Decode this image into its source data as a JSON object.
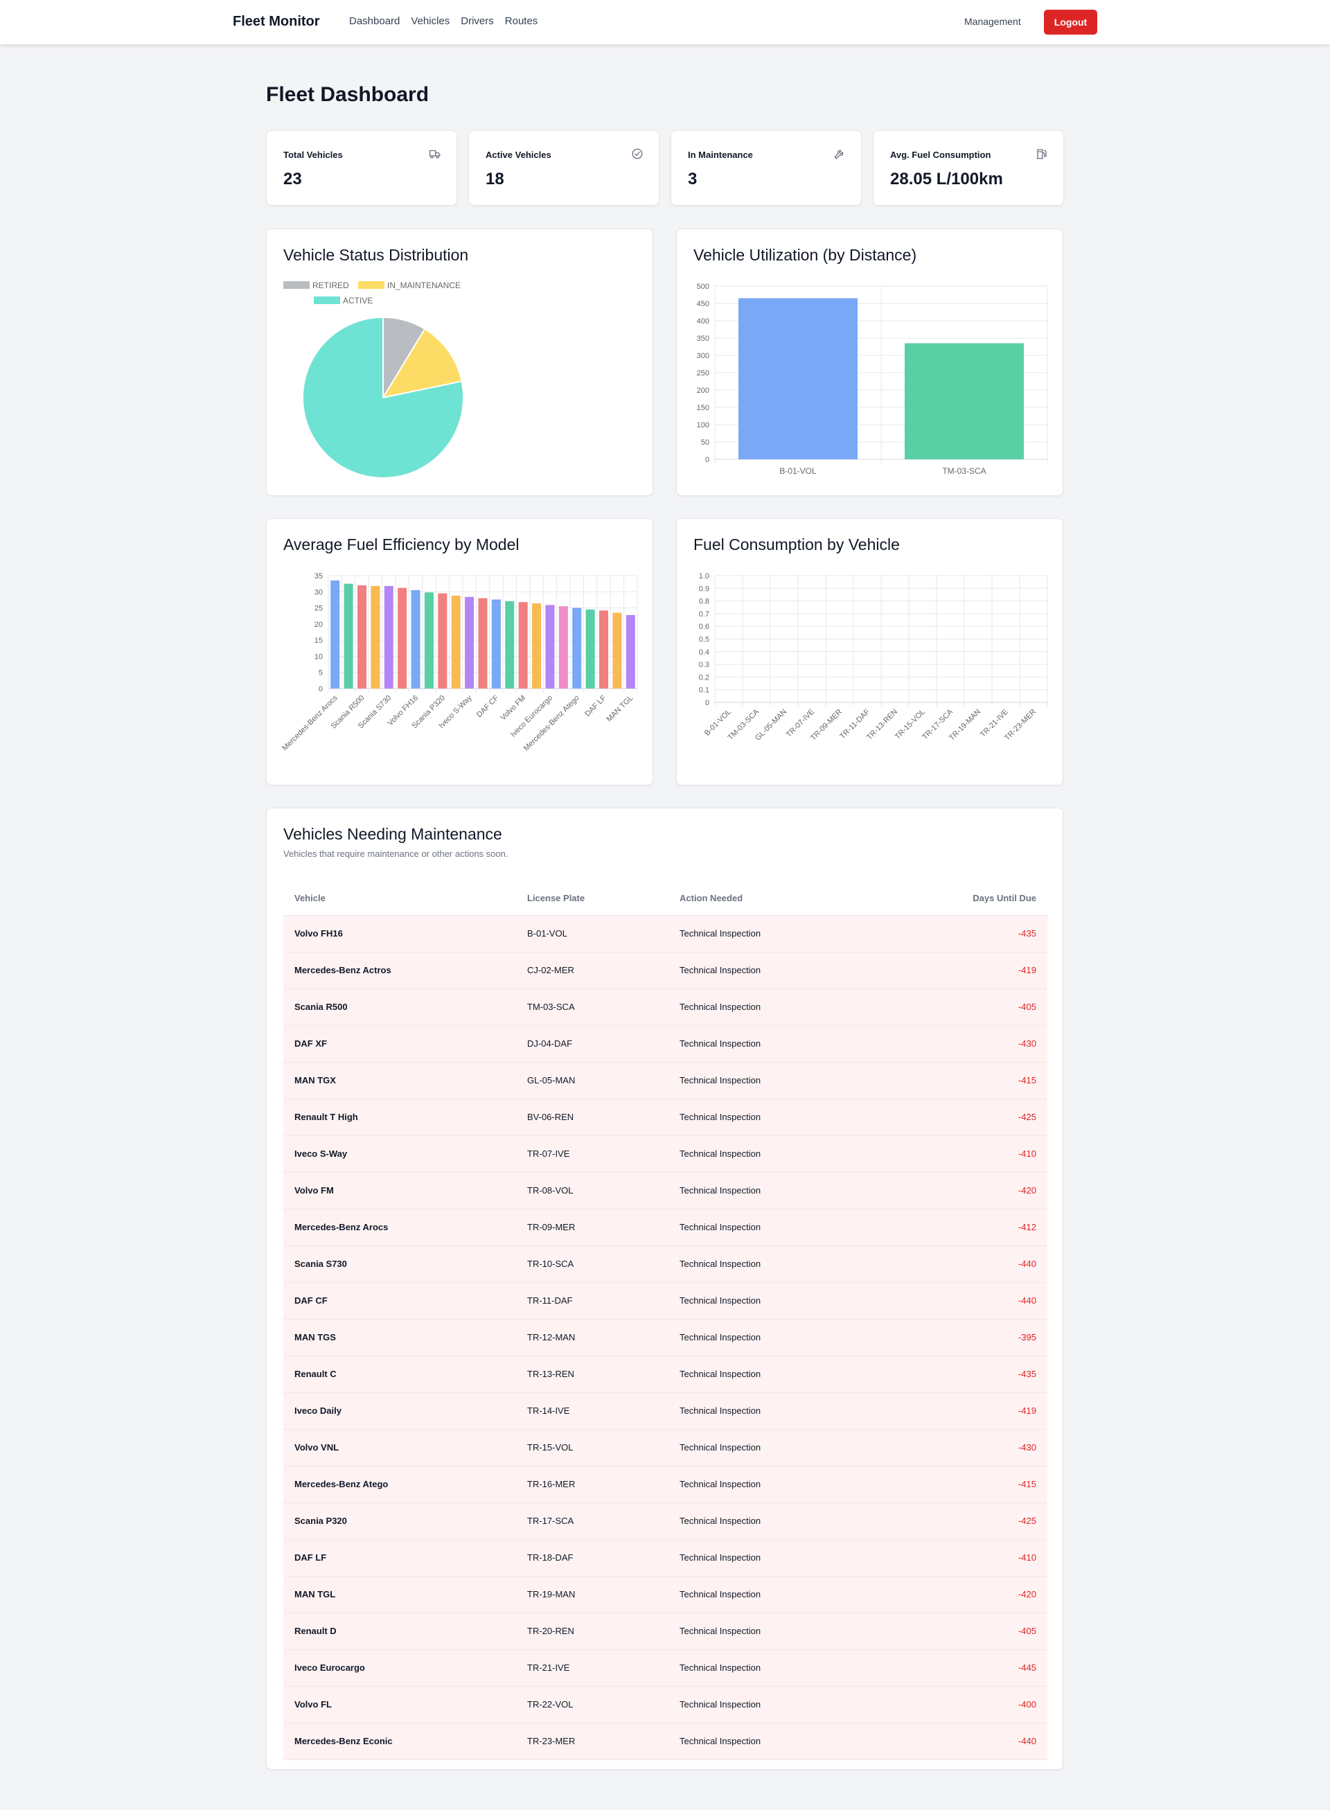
{
  "app": {
    "brand": "Fleet Monitor",
    "nav": [
      "Dashboard",
      "Vehicles",
      "Drivers",
      "Routes"
    ],
    "management": "Management",
    "logout": "Logout"
  },
  "page": {
    "title": "Fleet Dashboard"
  },
  "stats": [
    {
      "label": "Total Vehicles",
      "value": "23",
      "icon": "truck-icon"
    },
    {
      "label": "Active Vehicles",
      "value": "18",
      "icon": "check-circle-icon"
    },
    {
      "label": "In Maintenance",
      "value": "3",
      "icon": "wrench-icon"
    },
    {
      "label": "Avg. Fuel Consumption",
      "value": "28.05 L/100km",
      "icon": "fuel-icon"
    }
  ],
  "colors": {
    "gray": "#b9bcc1",
    "yellow": "#fcdc64",
    "teal": "#6ee3d3",
    "blue": "#78a8f6",
    "green": "#58cfa5",
    "red": "#f27f7f",
    "orange": "#f8ba53",
    "purple": "#b385f7",
    "pink": "#f08cc7"
  },
  "chart_data": [
    {
      "type": "pie",
      "title": "Vehicle Status Distribution",
      "legend": "top",
      "categories": [
        "RETIRED",
        "IN_MAINTENANCE",
        "ACTIVE"
      ],
      "values": [
        2,
        3,
        18
      ]
    },
    {
      "type": "bar",
      "title": "Vehicle Utilization (by Distance)",
      "categories": [
        "B-01-VOL",
        "TM-03-SCA"
      ],
      "values": [
        465,
        335
      ],
      "ylim": [
        0,
        500
      ],
      "yticks": [
        "0",
        "50",
        "100",
        "150",
        "200",
        "250",
        "300",
        "350",
        "400",
        "450",
        "500"
      ],
      "grid": true
    },
    {
      "type": "bar",
      "title": "Average Fuel Efficiency by Model",
      "categories": [
        "Mercedes-Benz Arocs",
        "",
        "Scania R500",
        "",
        "Scania S730",
        "",
        "Volvo FH16",
        "",
        "Scania P320",
        "",
        "Iveco S-Way",
        "",
        "DAF CF",
        "",
        "Volvo FM",
        "",
        "Iveco Eurocargo",
        "",
        "Mercedes-Benz Atego",
        "",
        "DAF LF",
        "",
        "MAN TGL"
      ],
      "values": [
        33.5,
        32.5,
        32.0,
        31.8,
        31.8,
        31.2,
        30.5,
        29.8,
        29.5,
        28.8,
        28.4,
        28.0,
        27.6,
        27.1,
        26.8,
        26.4,
        25.9,
        25.5,
        25.0,
        24.5,
        24.2,
        23.5,
        22.8
      ],
      "ylim": [
        0,
        35
      ],
      "yticks": [
        "0",
        "5",
        "10",
        "15",
        "20",
        "25",
        "30",
        "35"
      ],
      "grid": true
    },
    {
      "type": "bar",
      "title": "Fuel Consumption by Vehicle",
      "categories": [
        "B-01-VOL",
        "TM-03-SCA",
        "GL-05-MAN",
        "TR-07-IVE",
        "TR-09-MER",
        "TR-11-DAF",
        "TR-13-REN",
        "TR-15-VOL",
        "TR-17-SCA",
        "TR-19-MAN",
        "TR-21-IVE",
        "TR-23-MER"
      ],
      "values": [
        0,
        0,
        0,
        0,
        0,
        0,
        0,
        0,
        0,
        0,
        0,
        0
      ],
      "ylim": [
        0,
        1
      ],
      "yticks": [
        "0",
        "0.1",
        "0.2",
        "0.3",
        "0.4",
        "0.5",
        "0.6",
        "0.7",
        "0.8",
        "0.9",
        "1.0"
      ],
      "grid": true
    }
  ],
  "maintenance": {
    "title": "Vehicles Needing Maintenance",
    "subtitle": "Vehicles that require maintenance or other actions soon.",
    "columns": [
      "Vehicle",
      "License Plate",
      "Action Needed",
      "Days Until Due"
    ],
    "rows": [
      [
        "Volvo FH16",
        "B-01-VOL",
        "Technical Inspection",
        "-435"
      ],
      [
        "Mercedes-Benz Actros",
        "CJ-02-MER",
        "Technical Inspection",
        "-419"
      ],
      [
        "Scania R500",
        "TM-03-SCA",
        "Technical Inspection",
        "-405"
      ],
      [
        "DAF XF",
        "DJ-04-DAF",
        "Technical Inspection",
        "-430"
      ],
      [
        "MAN TGX",
        "GL-05-MAN",
        "Technical Inspection",
        "-415"
      ],
      [
        "Renault T High",
        "BV-06-REN",
        "Technical Inspection",
        "-425"
      ],
      [
        "Iveco S-Way",
        "TR-07-IVE",
        "Technical Inspection",
        "-410"
      ],
      [
        "Volvo FM",
        "TR-08-VOL",
        "Technical Inspection",
        "-420"
      ],
      [
        "Mercedes-Benz Arocs",
        "TR-09-MER",
        "Technical Inspection",
        "-412"
      ],
      [
        "Scania S730",
        "TR-10-SCA",
        "Technical Inspection",
        "-440"
      ],
      [
        "DAF CF",
        "TR-11-DAF",
        "Technical Inspection",
        "-440"
      ],
      [
        "MAN TGS",
        "TR-12-MAN",
        "Technical Inspection",
        "-395"
      ],
      [
        "Renault C",
        "TR-13-REN",
        "Technical Inspection",
        "-435"
      ],
      [
        "Iveco Daily",
        "TR-14-IVE",
        "Technical Inspection",
        "-419"
      ],
      [
        "Volvo VNL",
        "TR-15-VOL",
        "Technical Inspection",
        "-430"
      ],
      [
        "Mercedes-Benz Atego",
        "TR-16-MER",
        "Technical Inspection",
        "-415"
      ],
      [
        "Scania P320",
        "TR-17-SCA",
        "Technical Inspection",
        "-425"
      ],
      [
        "DAF LF",
        "TR-18-DAF",
        "Technical Inspection",
        "-410"
      ],
      [
        "MAN TGL",
        "TR-19-MAN",
        "Technical Inspection",
        "-420"
      ],
      [
        "Renault D",
        "TR-20-REN",
        "Technical Inspection",
        "-405"
      ],
      [
        "Iveco Eurocargo",
        "TR-21-IVE",
        "Technical Inspection",
        "-445"
      ],
      [
        "Volvo FL",
        "TR-22-VOL",
        "Technical Inspection",
        "-400"
      ],
      [
        "Mercedes-Benz Econic",
        "TR-23-MER",
        "Technical Inspection",
        "-440"
      ]
    ]
  }
}
